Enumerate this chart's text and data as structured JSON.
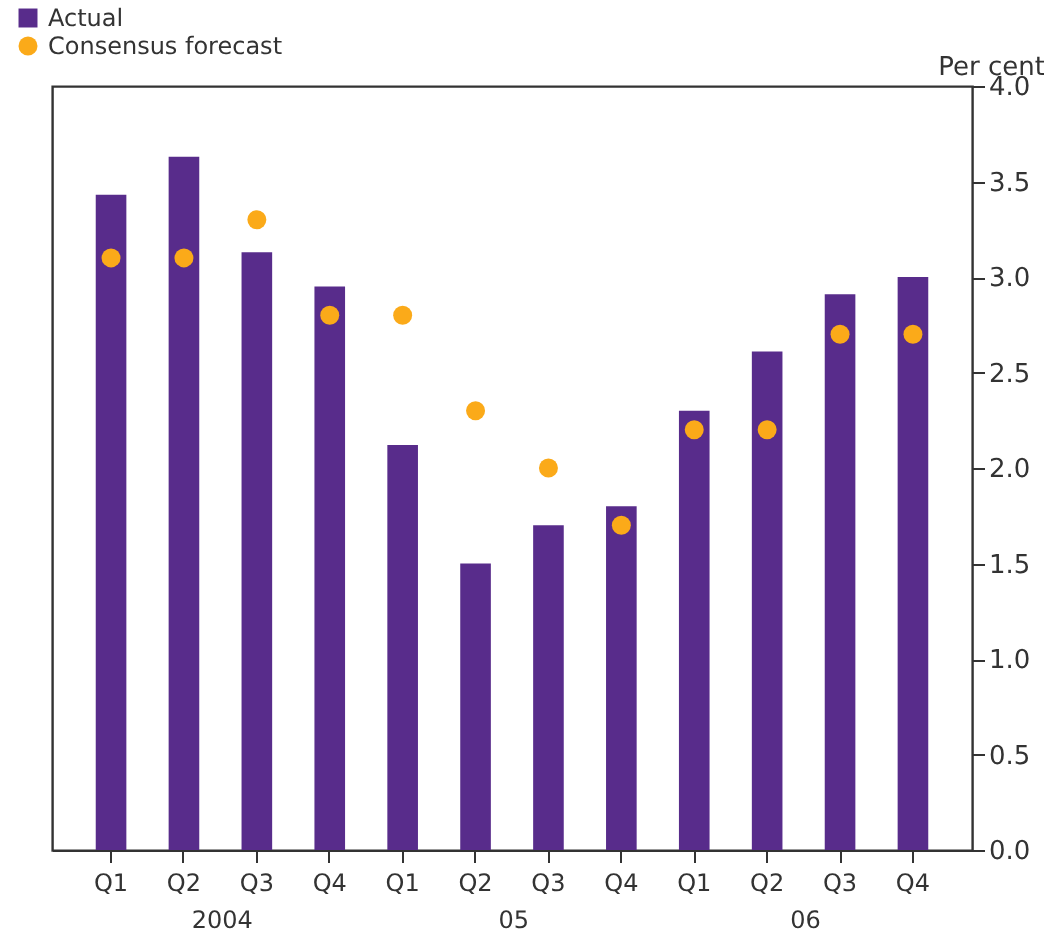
{
  "chart_data": {
    "type": "bar",
    "ylabel": "Per cent",
    "categories": [
      "Q1",
      "Q2",
      "Q3",
      "Q4",
      "Q1",
      "Q2",
      "Q3",
      "Q4",
      "Q1",
      "Q2",
      "Q3",
      "Q4"
    ],
    "series": [
      {
        "name": "Actual",
        "color": "#582c8b",
        "values": [
          3.43,
          3.63,
          3.13,
          2.95,
          2.12,
          1.5,
          1.7,
          1.8,
          2.3,
          2.61,
          2.91,
          3.0
        ]
      },
      {
        "name": "Consensus forecast",
        "type": "scatter",
        "color": "#fbaa19",
        "values": [
          3.1,
          3.1,
          3.3,
          2.8,
          2.8,
          2.3,
          2.0,
          1.7,
          2.2,
          2.2,
          2.7,
          2.7
        ]
      }
    ],
    "annotations": [
      "2004",
      "05",
      "06"
    ],
    "ylim": [
      0,
      4
    ],
    "yticks": [
      {
        "value": 0,
        "label": "0.0"
      },
      0.5,
      {
        "value": 1,
        "label": "1.0"
      },
      1.5,
      {
        "value": 2,
        "label": "2.0"
      },
      2.5,
      {
        "value": 3,
        "label": "3.0"
      },
      3.5,
      {
        "value": 4,
        "label": "4.0"
      }
    ],
    "grid": false,
    "legend": "top left",
    "marker": "circle"
  }
}
